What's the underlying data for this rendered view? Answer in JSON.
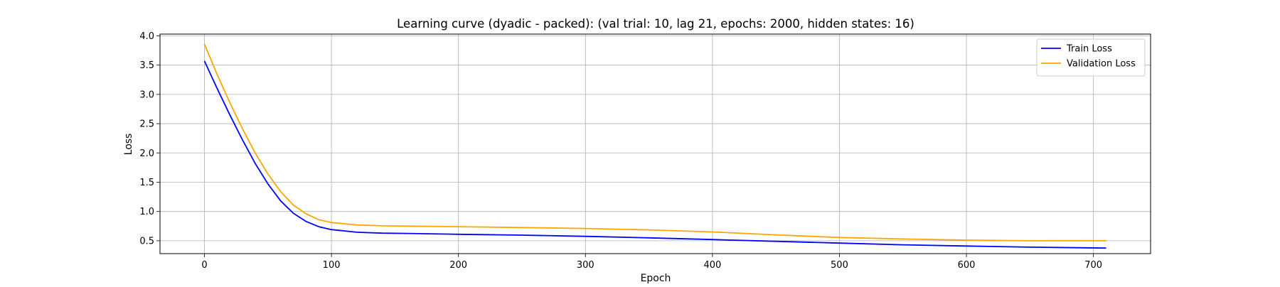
{
  "chart_data": {
    "type": "line",
    "title": "Learning curve (dyadic - packed): (val trial: 10, lag 21, epochs: 2000, hidden states: 16)",
    "xlabel": "Epoch",
    "ylabel": "Loss",
    "xlim": [
      -35,
      745
    ],
    "ylim": [
      0.28,
      4.03
    ],
    "xticks": [
      0,
      100,
      200,
      300,
      400,
      500,
      600,
      700
    ],
    "yticks": [
      0.5,
      1.0,
      1.5,
      2.0,
      2.5,
      3.0,
      3.5,
      4.0
    ],
    "grid": true,
    "legend_position": "top-right",
    "series": [
      {
        "name": "Train Loss",
        "color": "#0000ff",
        "x": [
          0,
          10,
          20,
          30,
          40,
          50,
          60,
          70,
          80,
          90,
          100,
          120,
          140,
          160,
          200,
          250,
          300,
          350,
          400,
          450,
          500,
          550,
          600,
          650,
          710
        ],
        "y": [
          3.57,
          3.1,
          2.65,
          2.22,
          1.82,
          1.47,
          1.18,
          0.97,
          0.83,
          0.74,
          0.69,
          0.645,
          0.63,
          0.625,
          0.61,
          0.595,
          0.575,
          0.55,
          0.52,
          0.49,
          0.46,
          0.43,
          0.41,
          0.39,
          0.375
        ]
      },
      {
        "name": "Validation Loss",
        "color": "#ffa500",
        "x": [
          0,
          10,
          20,
          30,
          40,
          50,
          60,
          70,
          80,
          90,
          100,
          120,
          140,
          160,
          200,
          250,
          300,
          350,
          400,
          450,
          500,
          550,
          600,
          650,
          710
        ],
        "y": [
          3.86,
          3.34,
          2.86,
          2.41,
          2.0,
          1.64,
          1.34,
          1.11,
          0.96,
          0.86,
          0.81,
          0.77,
          0.755,
          0.75,
          0.74,
          0.725,
          0.71,
          0.685,
          0.65,
          0.6,
          0.555,
          0.53,
          0.51,
          0.5,
          0.5
        ]
      }
    ]
  }
}
